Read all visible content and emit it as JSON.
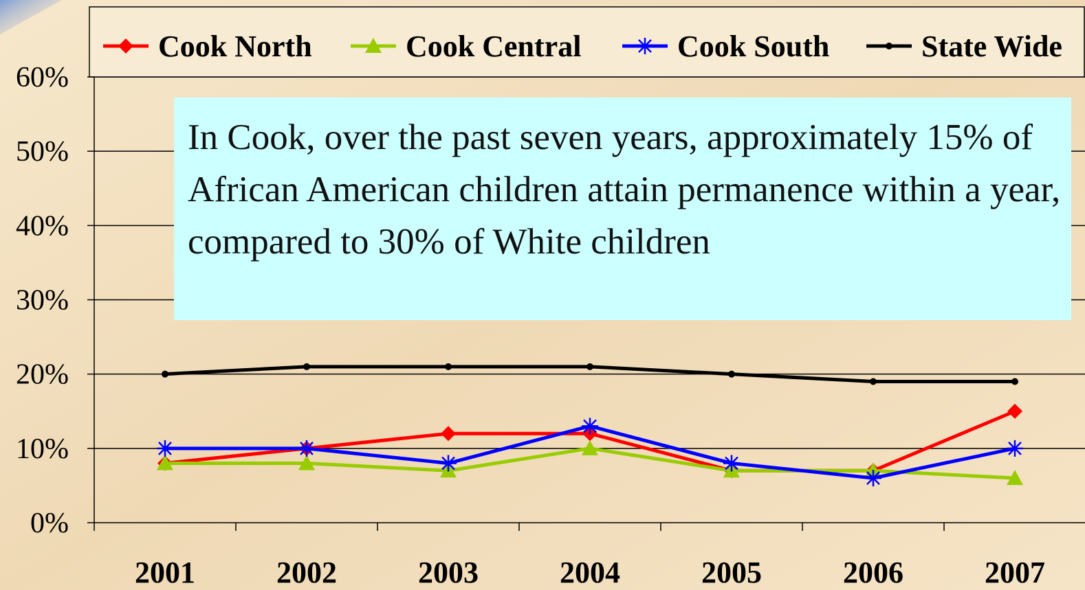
{
  "chart_data": {
    "type": "line",
    "categories": [
      "2001",
      "2002",
      "2003",
      "2004",
      "2005",
      "2006",
      "2007"
    ],
    "series": [
      {
        "name": "Cook North",
        "color": "#ff0000",
        "marker": "diamond",
        "values": [
          8,
          10,
          12,
          12,
          7,
          7,
          15
        ]
      },
      {
        "name": "Cook Central",
        "color": "#99cc00",
        "marker": "triangle",
        "values": [
          8,
          8,
          7,
          10,
          7,
          7,
          6
        ]
      },
      {
        "name": "Cook South",
        "color": "#0000ff",
        "marker": "asterisk",
        "values": [
          10,
          10,
          8,
          13,
          8,
          6,
          10
        ]
      },
      {
        "name": "State Wide",
        "color": "#000000",
        "marker": "circle",
        "values": [
          20,
          21,
          21,
          21,
          20,
          19,
          19
        ]
      }
    ],
    "ylim": [
      0,
      60
    ],
    "yticks": [
      {
        "value": 0,
        "label": "0%"
      },
      {
        "value": 10,
        "label": "10%"
      },
      {
        "value": 20,
        "label": "20%"
      },
      {
        "value": 30,
        "label": "30%"
      },
      {
        "value": 40,
        "label": "40%"
      },
      {
        "value": 50,
        "label": "50%"
      },
      {
        "value": 60,
        "label": "60%"
      }
    ],
    "grid": true,
    "legend": "top",
    "annotation": "In Cook, over the past seven years, approximately 15% of African American children attain permanence within a year, compared to 30% of White children"
  }
}
